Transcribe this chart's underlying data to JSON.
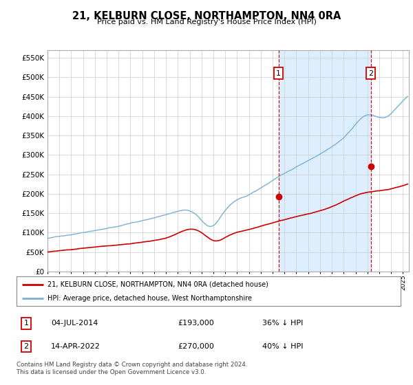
{
  "title": "21, KELBURN CLOSE, NORTHAMPTON, NN4 0RA",
  "subtitle": "Price paid vs. HM Land Registry's House Price Index (HPI)",
  "ytick_values": [
    0,
    50000,
    100000,
    150000,
    200000,
    250000,
    300000,
    350000,
    400000,
    450000,
    500000,
    550000
  ],
  "ylim": [
    0,
    570000
  ],
  "hpi_color": "#7ab0d4",
  "hpi_fill_color": "#ddeeff",
  "price_color": "#cc0000",
  "vline_color": "#cc0000",
  "marker1_x": 2014.5,
  "marker2_x": 2022.28,
  "marker1_price": 193000,
  "marker2_price": 270000,
  "legend_line1": "21, KELBURN CLOSE, NORTHAMPTON, NN4 0RA (detached house)",
  "legend_line2": "HPI: Average price, detached house, West Northamptonshire",
  "footer": "Contains HM Land Registry data © Crown copyright and database right 2024.\nThis data is licensed under the Open Government Licence v3.0.",
  "background_color": "#ffffff",
  "grid_color": "#cccccc",
  "xlim_start": 1995.0,
  "xlim_end": 2025.5
}
